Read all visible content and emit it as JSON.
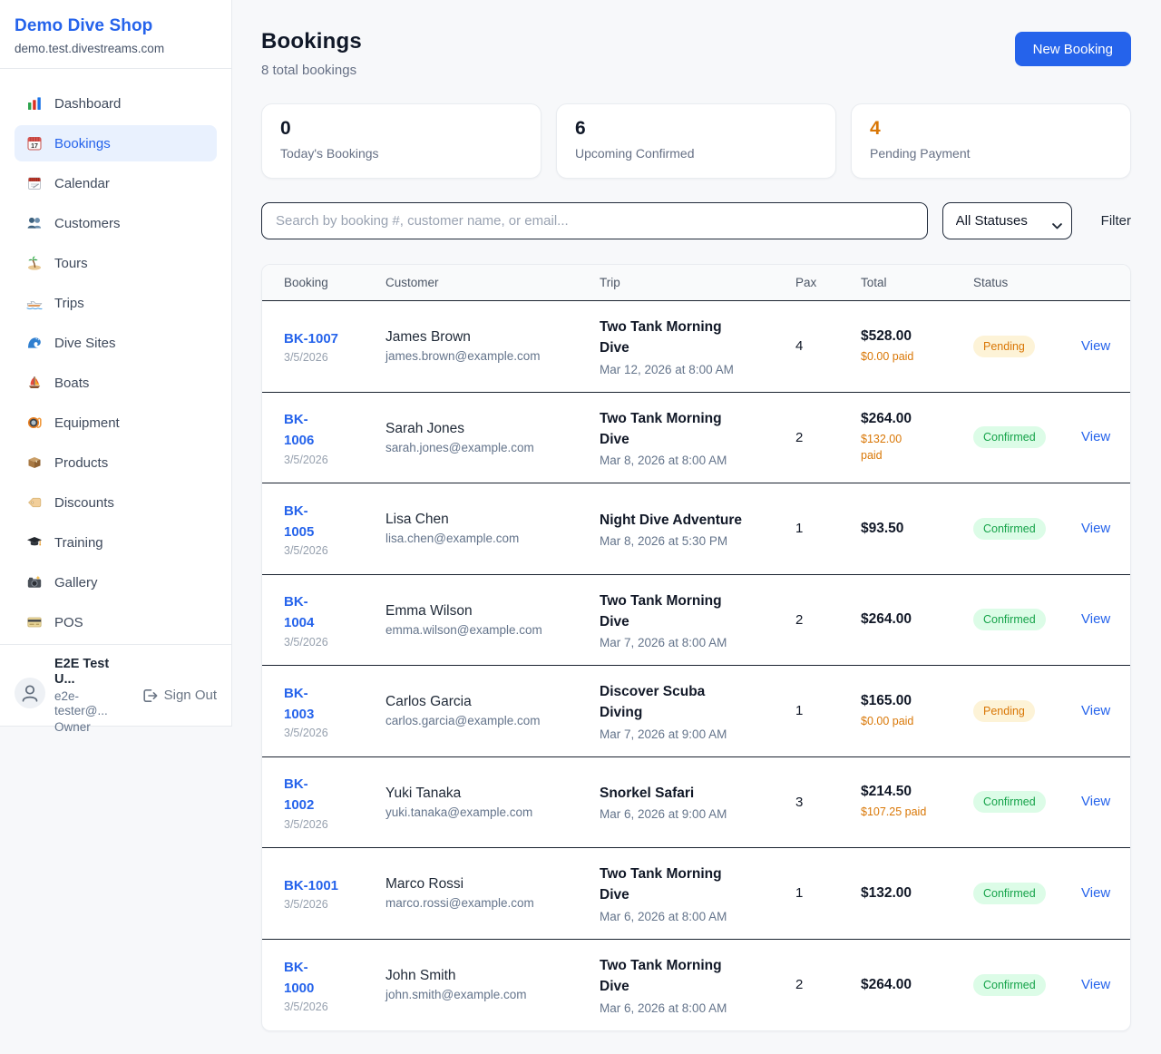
{
  "sidebar": {
    "brand": "Demo Dive Shop",
    "domain": "demo.test.divestreams.com",
    "nav": [
      {
        "label": "Dashboard",
        "icon": "dashboard-icon",
        "active": false
      },
      {
        "label": "Bookings",
        "icon": "bookings-icon",
        "active": true
      },
      {
        "label": "Calendar",
        "icon": "calendar-icon",
        "active": false
      },
      {
        "label": "Customers",
        "icon": "customers-icon",
        "active": false
      },
      {
        "label": "Tours",
        "icon": "tours-icon",
        "active": false
      },
      {
        "label": "Trips",
        "icon": "trips-icon",
        "active": false
      },
      {
        "label": "Dive Sites",
        "icon": "dive-sites-icon",
        "active": false
      },
      {
        "label": "Boats",
        "icon": "boats-icon",
        "active": false
      },
      {
        "label": "Equipment",
        "icon": "equipment-icon",
        "active": false
      },
      {
        "label": "Products",
        "icon": "products-icon",
        "active": false
      },
      {
        "label": "Discounts",
        "icon": "discounts-icon",
        "active": false
      },
      {
        "label": "Training",
        "icon": "training-icon",
        "active": false
      },
      {
        "label": "Gallery",
        "icon": "gallery-icon",
        "active": false
      },
      {
        "label": "POS",
        "icon": "pos-icon",
        "active": false
      }
    ],
    "user": {
      "name": "E2E Test U...",
      "email": "e2e-tester@...",
      "role": "Owner",
      "sign_out": "Sign Out"
    }
  },
  "header": {
    "title": "Bookings",
    "subtitle": "8 total bookings",
    "new_booking_label": "New Booking"
  },
  "stats": [
    {
      "value": "0",
      "label": "Today's Bookings",
      "accent": "#101828"
    },
    {
      "value": "6",
      "label": "Upcoming Confirmed",
      "accent": "#101828"
    },
    {
      "value": "4",
      "label": "Pending Payment",
      "accent": "#d97706"
    }
  ],
  "filters": {
    "search_placeholder": "Search by booking #, customer name, or email...",
    "status_selected": "All Statuses",
    "filter_label": "Filter"
  },
  "table": {
    "columns": [
      "Booking",
      "Customer",
      "Trip",
      "Pax",
      "Total",
      "Status"
    ],
    "status_colors": {
      "Pending": {
        "bg": "#fdf3d7",
        "text": "#d97706"
      },
      "Confirmed": {
        "bg": "#dcfce7",
        "text": "#16a34a"
      }
    },
    "rows": [
      {
        "id_lines": [
          "BK-1007"
        ],
        "date": "3/5/2026",
        "customer": "James Brown",
        "email": "james.brown@example.com",
        "trip_lines": [
          "Two Tank Morning",
          "Dive"
        ],
        "trip_time": "Mar 12, 2026 at 8:00 AM",
        "pax": "4",
        "total": "$528.00",
        "paid_lines": [
          "$0.00 paid"
        ],
        "status": "Pending",
        "action": "View"
      },
      {
        "id_lines": [
          "BK-",
          "1006"
        ],
        "date": "3/5/2026",
        "customer": "Sarah Jones",
        "email": "sarah.jones@example.com",
        "trip_lines": [
          "Two Tank Morning",
          "Dive"
        ],
        "trip_time": "Mar 8, 2026 at 8:00 AM",
        "pax": "2",
        "total": "$264.00",
        "paid_lines": [
          "$132.00",
          "paid"
        ],
        "status": "Confirmed",
        "action": "View"
      },
      {
        "id_lines": [
          "BK-",
          "1005"
        ],
        "date": "3/5/2026",
        "customer": "Lisa Chen",
        "email": "lisa.chen@example.com",
        "trip_lines": [
          "Night Dive Adventure"
        ],
        "trip_time": "Mar 8, 2026 at 5:30 PM",
        "pax": "1",
        "total": "$93.50",
        "paid_lines": [],
        "status": "Confirmed",
        "action": "View"
      },
      {
        "id_lines": [
          "BK-",
          "1004"
        ],
        "date": "3/5/2026",
        "customer": "Emma Wilson",
        "email": "emma.wilson@example.com",
        "trip_lines": [
          "Two Tank Morning",
          "Dive"
        ],
        "trip_time": "Mar 7, 2026 at 8:00 AM",
        "pax": "2",
        "total": "$264.00",
        "paid_lines": [],
        "status": "Confirmed",
        "action": "View"
      },
      {
        "id_lines": [
          "BK-",
          "1003"
        ],
        "date": "3/5/2026",
        "customer": "Carlos Garcia",
        "email": "carlos.garcia@example.com",
        "trip_lines": [
          "Discover Scuba",
          "Diving"
        ],
        "trip_time": "Mar 7, 2026 at 9:00 AM",
        "pax": "1",
        "total": "$165.00",
        "paid_lines": [
          "$0.00 paid"
        ],
        "status": "Pending",
        "action": "View"
      },
      {
        "id_lines": [
          "BK-",
          "1002"
        ],
        "date": "3/5/2026",
        "customer": "Yuki Tanaka",
        "email": "yuki.tanaka@example.com",
        "trip_lines": [
          "Snorkel Safari"
        ],
        "trip_time": "Mar 6, 2026 at 9:00 AM",
        "pax": "3",
        "total": "$214.50",
        "paid_lines": [
          "$107.25 paid"
        ],
        "status": "Confirmed",
        "action": "View"
      },
      {
        "id_lines": [
          "BK-1001"
        ],
        "date": "3/5/2026",
        "customer": "Marco Rossi",
        "email": "marco.rossi@example.com",
        "trip_lines": [
          "Two Tank Morning",
          "Dive"
        ],
        "trip_time": "Mar 6, 2026 at 8:00 AM",
        "pax": "1",
        "total": "$132.00",
        "paid_lines": [],
        "status": "Confirmed",
        "action": "View"
      },
      {
        "id_lines": [
          "BK-",
          "1000"
        ],
        "date": "3/5/2026",
        "customer": "John Smith",
        "email": "john.smith@example.com",
        "trip_lines": [
          "Two Tank Morning",
          "Dive"
        ],
        "trip_time": "Mar 6, 2026 at 8:00 AM",
        "pax": "2",
        "total": "$264.00",
        "paid_lines": [],
        "status": "Confirmed",
        "action": "View"
      }
    ]
  },
  "colors": {
    "accent_blue": "#2563eb",
    "pending_orange": "#d97706",
    "confirmed_green": "#16a34a",
    "page_bg": "#f7f8fa"
  }
}
